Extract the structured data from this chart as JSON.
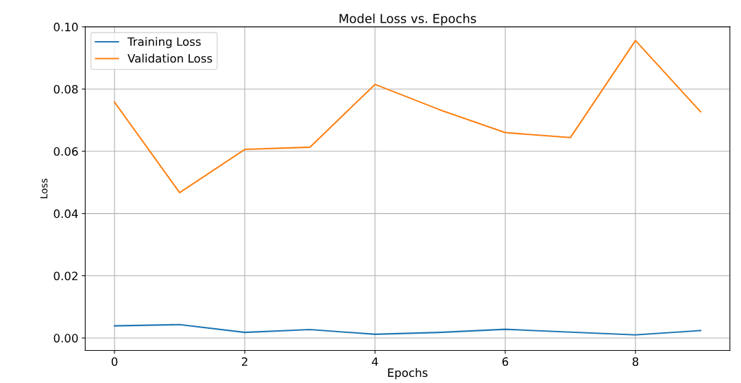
{
  "chart_data": {
    "type": "line",
    "title": "Model Loss vs. Epochs",
    "xlabel": "Epochs",
    "ylabel": "Loss",
    "x": [
      0,
      1,
      2,
      3,
      4,
      5,
      6,
      7,
      8,
      9
    ],
    "series": [
      {
        "name": "Training Loss",
        "color": "#1f77b4",
        "values": [
          0.0039,
          0.0043,
          0.0018,
          0.0027,
          0.0012,
          0.0018,
          0.0028,
          0.0019,
          0.001,
          0.0024
        ]
      },
      {
        "name": "Validation Loss",
        "color": "#ff7f0e",
        "values": [
          0.0758,
          0.0467,
          0.0606,
          0.0613,
          0.0815,
          0.0733,
          0.066,
          0.0644,
          0.0956,
          0.0727
        ]
      }
    ],
    "xlim": [
      -0.45,
      9.45
    ],
    "ylim": [
      -0.004,
      0.1
    ],
    "xticks": [
      0,
      2,
      4,
      6,
      8
    ],
    "yticks": [
      {
        "value": 0,
        "label": "0.00"
      },
      {
        "value": 0.02,
        "label": "0.02"
      },
      {
        "value": 0.04,
        "label": "0.04"
      },
      {
        "value": 0.06,
        "label": "0.06"
      },
      {
        "value": 0.08,
        "label": "0.08"
      },
      {
        "value": 0.1,
        "label": "0.10"
      }
    ],
    "grid": true,
    "legend": "top left"
  }
}
